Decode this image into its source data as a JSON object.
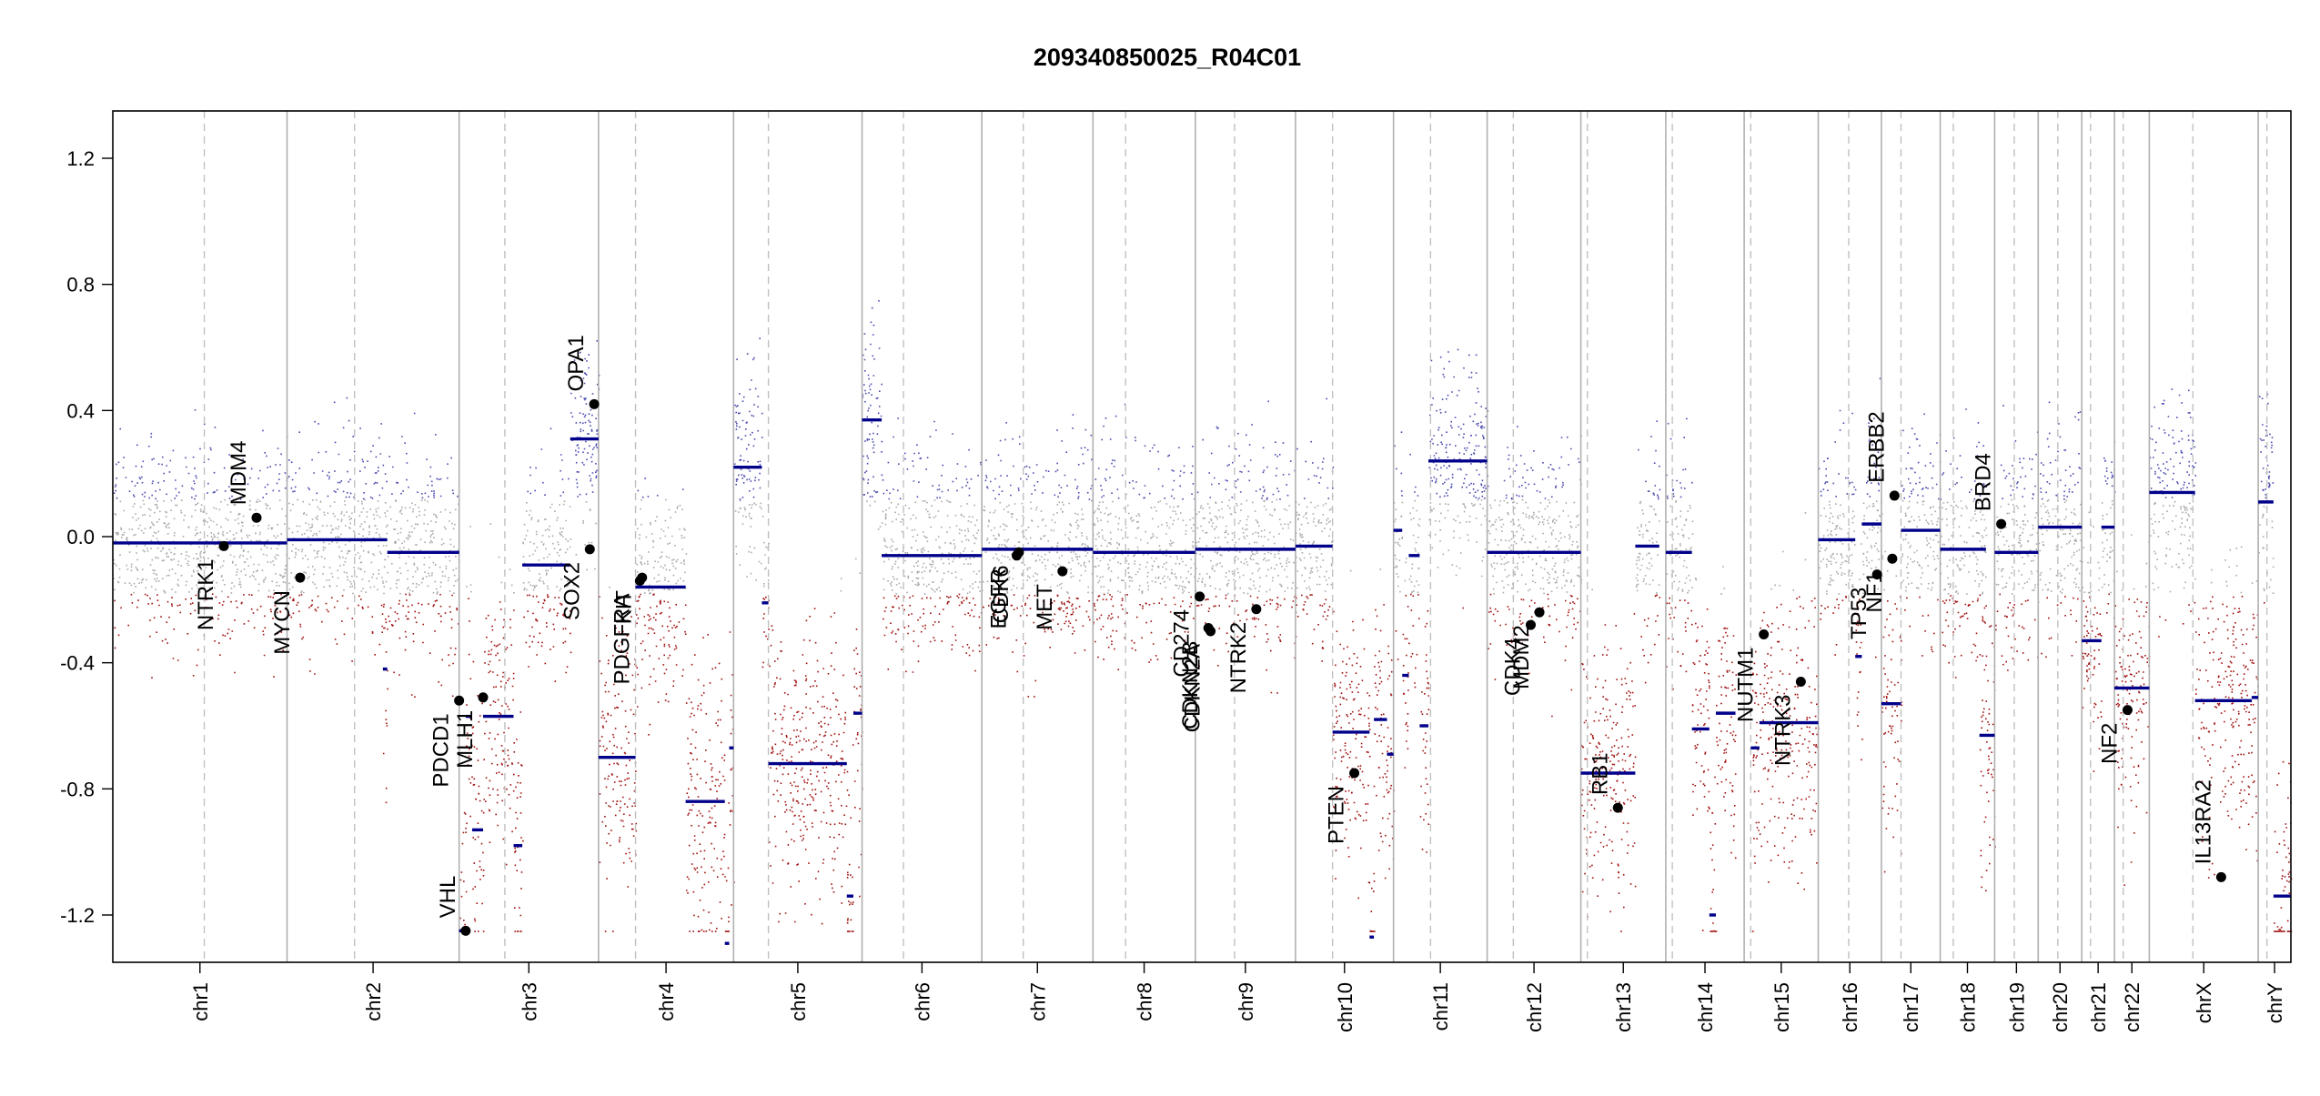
{
  "chart_data": {
    "type": "scatter",
    "title": "209340850025_R04C01",
    "xlabel": "",
    "ylabel": "",
    "ylim": [
      -1.35,
      1.35
    ],
    "y_ticks": [
      1.2,
      0.8,
      0.4,
      0.0,
      -0.4,
      -0.8,
      -1.2
    ],
    "y_tick_labels": [
      "1.2",
      "0.8",
      "0.4",
      "0.0",
      "-0.4",
      "-0.8",
      "-1.2"
    ],
    "grid": false,
    "legend": "none",
    "colors": {
      "gain_points": "#4b4bb0",
      "neutral_points": "#a9a9a9",
      "loss_points": "#a01010",
      "segments": "#00008b",
      "genes": "#000000",
      "chrom_border": "#b0b0b0",
      "centromere": "#c0c0c0"
    },
    "chromosomes": [
      {
        "name": "chr1",
        "start": 0.0,
        "end": 0.08,
        "centromere": 0.042
      },
      {
        "name": "chr2",
        "start": 0.08,
        "end": 0.159,
        "centromere": 0.111
      },
      {
        "name": "chr3",
        "start": 0.159,
        "end": 0.223,
        "centromere": 0.18
      },
      {
        "name": "chr4",
        "start": 0.223,
        "end": 0.285,
        "centromere": 0.24
      },
      {
        "name": "chr5",
        "start": 0.285,
        "end": 0.344,
        "centromere": 0.301
      },
      {
        "name": "chr6",
        "start": 0.344,
        "end": 0.399,
        "centromere": 0.363
      },
      {
        "name": "chr7",
        "start": 0.399,
        "end": 0.45,
        "centromere": 0.418
      },
      {
        "name": "chr8",
        "start": 0.45,
        "end": 0.497,
        "centromere": 0.465
      },
      {
        "name": "chr9",
        "start": 0.497,
        "end": 0.543,
        "centromere": 0.515
      },
      {
        "name": "chr10",
        "start": 0.543,
        "end": 0.588,
        "centromere": 0.56
      },
      {
        "name": "chr11",
        "start": 0.588,
        "end": 0.631,
        "centromere": 0.605
      },
      {
        "name": "chr12",
        "start": 0.631,
        "end": 0.674,
        "centromere": 0.643
      },
      {
        "name": "chr13",
        "start": 0.674,
        "end": 0.713,
        "centromere": 0.677
      },
      {
        "name": "chr14",
        "start": 0.713,
        "end": 0.749,
        "centromere": 0.716
      },
      {
        "name": "chr15",
        "start": 0.749,
        "end": 0.783,
        "centromere": 0.752
      },
      {
        "name": "chr16",
        "start": 0.783,
        "end": 0.812,
        "centromere": 0.797
      },
      {
        "name": "chr17",
        "start": 0.812,
        "end": 0.839,
        "centromere": 0.821
      },
      {
        "name": "chr18",
        "start": 0.839,
        "end": 0.864,
        "centromere": 0.845
      },
      {
        "name": "chr19",
        "start": 0.864,
        "end": 0.884,
        "centromere": 0.873
      },
      {
        "name": "chr20",
        "start": 0.884,
        "end": 0.904,
        "centromere": 0.893
      },
      {
        "name": "chr21",
        "start": 0.904,
        "end": 0.919,
        "centromere": 0.908
      },
      {
        "name": "chr22",
        "start": 0.919,
        "end": 0.935,
        "centromere": 0.923
      },
      {
        "name": "chrX",
        "start": 0.935,
        "end": 0.985,
        "centromere": 0.955
      },
      {
        "name": "chrY",
        "start": 0.985,
        "end": 1.0,
        "centromere": 0.989
      }
    ],
    "segments": [
      {
        "x0": 0.0,
        "x1": 0.08,
        "y": -0.02
      },
      {
        "x0": 0.08,
        "x1": 0.126,
        "y": -0.01
      },
      {
        "x0": 0.126,
        "x1": 0.159,
        "y": -0.05
      },
      {
        "x0": 0.124,
        "x1": 0.126,
        "y": -0.42
      },
      {
        "x0": 0.159,
        "x1": 0.162,
        "y": -1.25
      },
      {
        "x0": 0.162,
        "x1": 0.165,
        "y": -0.57
      },
      {
        "x0": 0.165,
        "x1": 0.17,
        "y": -0.93
      },
      {
        "x0": 0.17,
        "x1": 0.184,
        "y": -0.57
      },
      {
        "x0": 0.184,
        "x1": 0.188,
        "y": -0.98
      },
      {
        "x0": 0.188,
        "x1": 0.21,
        "y": -0.09
      },
      {
        "x0": 0.21,
        "x1": 0.223,
        "y": 0.31
      },
      {
        "x0": 0.223,
        "x1": 0.24,
        "y": -0.7
      },
      {
        "x0": 0.24,
        "x1": 0.263,
        "y": -0.16
      },
      {
        "x0": 0.263,
        "x1": 0.281,
        "y": -0.84
      },
      {
        "x0": 0.281,
        "x1": 0.283,
        "y": -1.29
      },
      {
        "x0": 0.283,
        "x1": 0.285,
        "y": -0.67
      },
      {
        "x0": 0.285,
        "x1": 0.298,
        "y": 0.22
      },
      {
        "x0": 0.298,
        "x1": 0.301,
        "y": -0.21
      },
      {
        "x0": 0.301,
        "x1": 0.337,
        "y": -0.72
      },
      {
        "x0": 0.337,
        "x1": 0.34,
        "y": -1.14
      },
      {
        "x0": 0.34,
        "x1": 0.344,
        "y": -0.56
      },
      {
        "x0": 0.344,
        "x1": 0.353,
        "y": 0.37
      },
      {
        "x0": 0.353,
        "x1": 0.399,
        "y": -0.06
      },
      {
        "x0": 0.399,
        "x1": 0.45,
        "y": -0.04
      },
      {
        "x0": 0.45,
        "x1": 0.497,
        "y": -0.05
      },
      {
        "x0": 0.497,
        "x1": 0.543,
        "y": -0.04
      },
      {
        "x0": 0.543,
        "x1": 0.56,
        "y": -0.03
      },
      {
        "x0": 0.56,
        "x1": 0.577,
        "y": -0.62
      },
      {
        "x0": 0.577,
        "x1": 0.579,
        "y": -1.27
      },
      {
        "x0": 0.579,
        "x1": 0.585,
        "y": -0.58
      },
      {
        "x0": 0.585,
        "x1": 0.588,
        "y": -0.69
      },
      {
        "x0": 0.588,
        "x1": 0.592,
        "y": 0.02
      },
      {
        "x0": 0.592,
        "x1": 0.595,
        "y": -0.44
      },
      {
        "x0": 0.595,
        "x1": 0.6,
        "y": -0.06
      },
      {
        "x0": 0.6,
        "x1": 0.604,
        "y": -0.6
      },
      {
        "x0": 0.604,
        "x1": 0.631,
        "y": 0.24
      },
      {
        "x0": 0.631,
        "x1": 0.674,
        "y": -0.05
      },
      {
        "x0": 0.674,
        "x1": 0.699,
        "y": -0.75
      },
      {
        "x0": 0.699,
        "x1": 0.71,
        "y": -0.03
      },
      {
        "x0": 0.713,
        "x1": 0.725,
        "y": -0.05
      },
      {
        "x0": 0.725,
        "x1": 0.733,
        "y": -0.61
      },
      {
        "x0": 0.733,
        "x1": 0.736,
        "y": -1.2
      },
      {
        "x0": 0.736,
        "x1": 0.745,
        "y": -0.56
      },
      {
        "x0": 0.752,
        "x1": 0.756,
        "y": -0.67
      },
      {
        "x0": 0.756,
        "x1": 0.783,
        "y": -0.59
      },
      {
        "x0": 0.783,
        "x1": 0.8,
        "y": -0.01
      },
      {
        "x0": 0.8,
        "x1": 0.803,
        "y": -0.38
      },
      {
        "x0": 0.803,
        "x1": 0.812,
        "y": 0.04
      },
      {
        "x0": 0.812,
        "x1": 0.821,
        "y": -0.53
      },
      {
        "x0": 0.821,
        "x1": 0.839,
        "y": 0.02
      },
      {
        "x0": 0.839,
        "x1": 0.86,
        "y": -0.04
      },
      {
        "x0": 0.857,
        "x1": 0.864,
        "y": -0.63
      },
      {
        "x0": 0.864,
        "x1": 0.884,
        "y": -0.05
      },
      {
        "x0": 0.884,
        "x1": 0.904,
        "y": 0.03
      },
      {
        "x0": 0.904,
        "x1": 0.913,
        "y": -0.33
      },
      {
        "x0": 0.913,
        "x1": 0.919,
        "y": 0.03
      },
      {
        "x0": 0.919,
        "x1": 0.935,
        "y": -0.48
      },
      {
        "x0": 0.935,
        "x1": 0.956,
        "y": 0.14
      },
      {
        "x0": 0.956,
        "x1": 0.982,
        "y": -0.52
      },
      {
        "x0": 0.982,
        "x1": 0.985,
        "y": -0.51
      },
      {
        "x0": 0.985,
        "x1": 0.992,
        "y": 0.11
      },
      {
        "x0": 0.992,
        "x1": 1.0,
        "y": -1.14
      }
    ],
    "genes": [
      {
        "name": "NTRK1",
        "x": 0.051,
        "y": -0.03,
        "side": "below"
      },
      {
        "name": "MDM4",
        "x": 0.066,
        "y": 0.06,
        "side": "above"
      },
      {
        "name": "MYCN",
        "x": 0.086,
        "y": -0.13,
        "side": "below"
      },
      {
        "name": "VHL",
        "x": 0.162,
        "y": -1.25,
        "side": "above"
      },
      {
        "name": "PDCD1",
        "x": 0.159,
        "y": -0.52,
        "side": "below"
      },
      {
        "name": "MLH1",
        "x": 0.17,
        "y": -0.51,
        "side": "below"
      },
      {
        "name": "SOX2",
        "x": 0.219,
        "y": -0.04,
        "side": "below"
      },
      {
        "name": "OPA1",
        "x": 0.221,
        "y": 0.42,
        "side": "above"
      },
      {
        "name": "PDGFRA",
        "x": 0.242,
        "y": -0.14,
        "side": "below"
      },
      {
        "name": "KIT",
        "x": 0.243,
        "y": -0.13,
        "side": "below"
      },
      {
        "name": "EGFR",
        "x": 0.415,
        "y": -0.06,
        "side": "below"
      },
      {
        "name": "CDK6",
        "x": 0.416,
        "y": -0.05,
        "side": "below"
      },
      {
        "name": "MET",
        "x": 0.436,
        "y": -0.11,
        "side": "below"
      },
      {
        "name": "CDKN2A",
        "x": 0.504,
        "y": -0.3,
        "side": "below"
      },
      {
        "name": "CDKN2B",
        "x": 0.503,
        "y": -0.29,
        "side": "below"
      },
      {
        "name": "CD274",
        "x": 0.499,
        "y": -0.19,
        "side": "below"
      },
      {
        "name": "NTRK2",
        "x": 0.525,
        "y": -0.23,
        "side": "below"
      },
      {
        "name": "PTEN",
        "x": 0.57,
        "y": -0.75,
        "side": "below"
      },
      {
        "name": "CDK4",
        "x": 0.651,
        "y": -0.28,
        "side": "below"
      },
      {
        "name": "MDM2",
        "x": 0.655,
        "y": -0.24,
        "side": "below"
      },
      {
        "name": "RB1",
        "x": 0.691,
        "y": -0.86,
        "side": "above"
      },
      {
        "name": "NUTM1",
        "x": 0.758,
        "y": -0.31,
        "side": "below"
      },
      {
        "name": "NTRK3",
        "x": 0.775,
        "y": -0.46,
        "side": "below"
      },
      {
        "name": "TP53",
        "x": 0.81,
        "y": -0.12,
        "side": "below"
      },
      {
        "name": "NF1",
        "x": 0.817,
        "y": -0.07,
        "side": "below"
      },
      {
        "name": "ERBB2",
        "x": 0.818,
        "y": 0.13,
        "side": "above"
      },
      {
        "name": "BRD4",
        "x": 0.867,
        "y": 0.04,
        "side": "above"
      },
      {
        "name": "NF2",
        "x": 0.925,
        "y": -0.55,
        "side": "below"
      },
      {
        "name": "IL13RA2",
        "x": 0.968,
        "y": -1.08,
        "side": "above"
      }
    ]
  }
}
